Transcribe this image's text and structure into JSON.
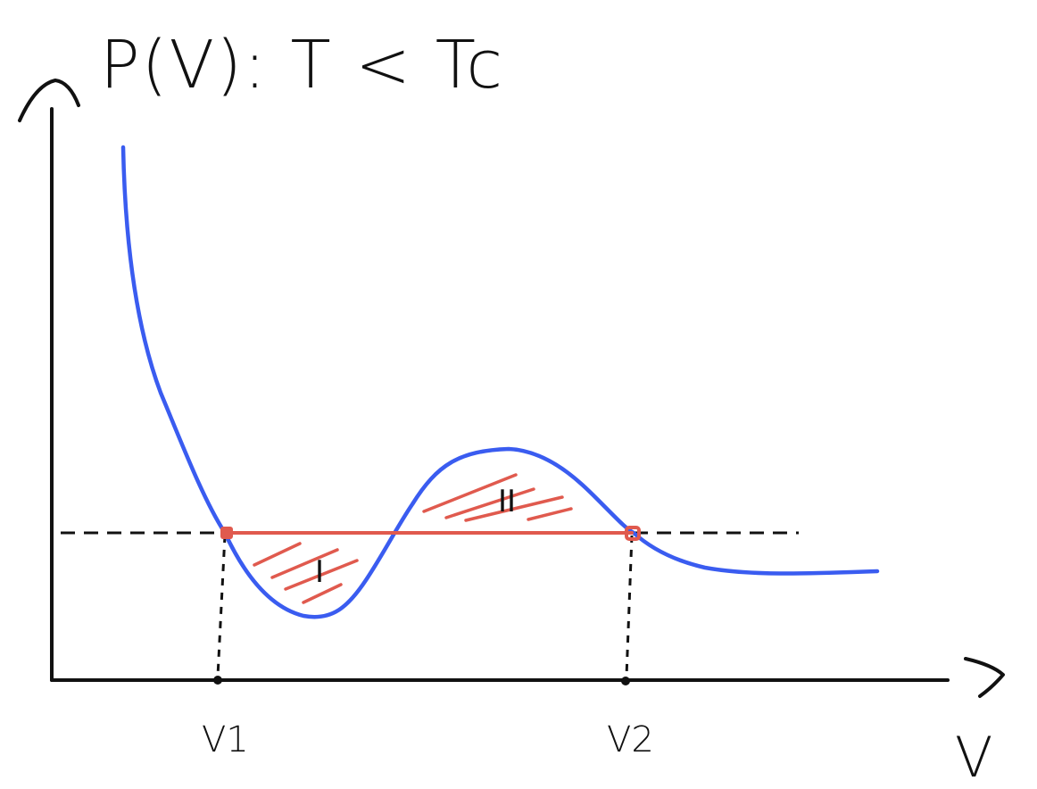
{
  "title": "P(V): T < Tc",
  "axes": {
    "y_label": "",
    "x_label": "V"
  },
  "ticks": {
    "v1": "V1",
    "v2": "V2"
  },
  "regions": {
    "first": "I",
    "second": "II"
  },
  "colors": {
    "isotherm": "#3a5cf0",
    "maxwell_line": "#e05a4e",
    "ink": "#111111"
  }
}
